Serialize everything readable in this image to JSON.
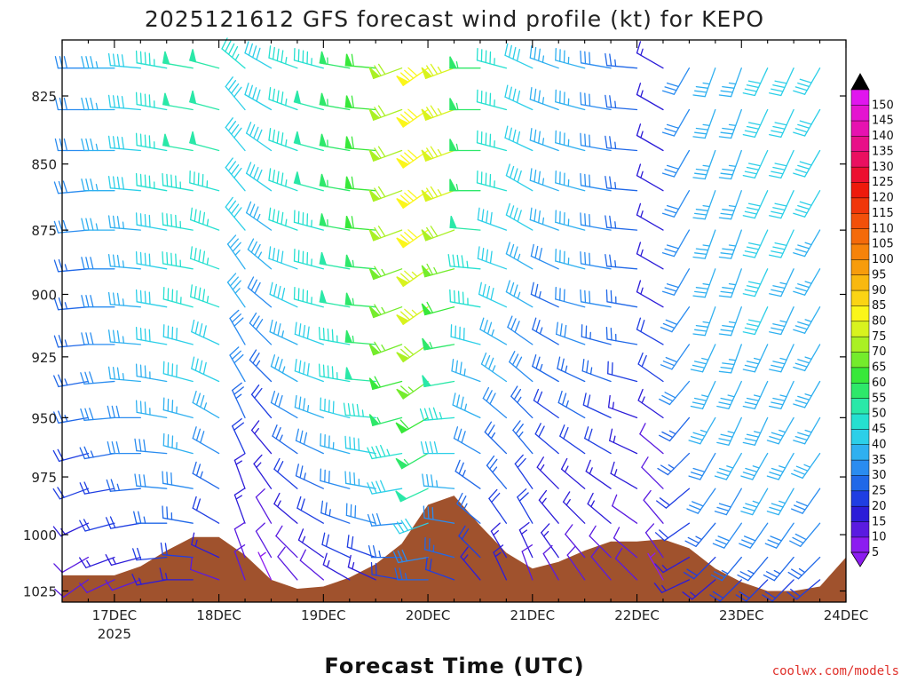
{
  "chart_data": {
    "type": "wind_profile",
    "title": "2025121612 GFS forecast wind profile (kt) for KEPO",
    "xlabel": "Forecast Time (UTC)",
    "credit": "coolwx.com/models",
    "x_ticks": [
      {
        "label": "17DEC",
        "sub": "2025",
        "hour": 12
      },
      {
        "label": "18DEC",
        "sub": "",
        "hour": 36
      },
      {
        "label": "19DEC",
        "sub": "",
        "hour": 60
      },
      {
        "label": "20DEC",
        "sub": "",
        "hour": 84
      },
      {
        "label": "21DEC",
        "sub": "",
        "hour": 108
      },
      {
        "label": "22DEC",
        "sub": "",
        "hour": 132
      },
      {
        "label": "23DEC",
        "sub": "",
        "hour": 156
      },
      {
        "label": "24DEC",
        "sub": "",
        "hour": 180
      }
    ],
    "x_range_hours": [
      0,
      180
    ],
    "y_label_ticks": [
      825,
      850,
      875,
      900,
      925,
      950,
      975,
      1000,
      1025
    ],
    "y_range_mb": [
      805,
      1030
    ],
    "pressure_levels": [
      815,
      830,
      845,
      860,
      875,
      890,
      905,
      920,
      935,
      950,
      965,
      980,
      995,
      1010,
      1020
    ],
    "barb_hours": [
      6,
      12,
      18,
      24,
      30,
      36,
      42,
      48,
      54,
      60,
      66,
      72,
      78,
      84,
      90,
      96,
      102,
      108,
      114,
      120,
      126,
      132,
      138,
      144,
      150,
      156,
      162,
      168,
      174
    ],
    "colorbar": {
      "values": [
        5,
        10,
        15,
        20,
        25,
        30,
        35,
        40,
        45,
        50,
        55,
        60,
        65,
        70,
        75,
        80,
        85,
        90,
        95,
        100,
        105,
        110,
        115,
        120,
        125,
        130,
        135,
        140,
        145,
        150
      ],
      "colors": [
        "#8c1cf0",
        "#5a1be0",
        "#2c1cd8",
        "#1f3ee2",
        "#2068e8",
        "#2a8cf0",
        "#2fb0f0",
        "#2ccfe8",
        "#25e0d0",
        "#2ae8a8",
        "#2ee86a",
        "#38e83a",
        "#74ec2c",
        "#aaf024",
        "#d8f31e",
        "#fbf61a",
        "#fbd414",
        "#f9b80f",
        "#f79c0c",
        "#f6830a",
        "#f46a0a",
        "#f2500a",
        "#f0360a",
        "#ee1a0c",
        "#ec1030",
        "#ea1060",
        "#e81088",
        "#e612b0",
        "#e414d0",
        "#e016ee"
      ],
      "under_color": "#8c1cf0",
      "over_color": "#000000"
    },
    "terrain": {
      "color": "#a0522d",
      "hours": [
        0,
        6,
        12,
        18,
        24,
        30,
        36,
        42,
        48,
        54,
        60,
        66,
        72,
        78,
        84,
        90,
        96,
        102,
        108,
        114,
        120,
        126,
        132,
        138,
        144,
        150,
        156,
        162,
        168,
        174,
        180
      ],
      "pressure_mb": [
        1018,
        1018,
        1018,
        1014,
        1007,
        1001,
        1001,
        1009,
        1020,
        1024,
        1023,
        1019,
        1013,
        1004,
        987,
        983,
        996,
        1008,
        1015,
        1012,
        1007,
        1003,
        1003,
        1002,
        1006,
        1015,
        1021,
        1025,
        1025,
        1023,
        1010
      ]
    },
    "wind_field": {
      "speed_kt": [
        [
          30,
          35,
          40,
          45,
          50,
          50,
          45,
          40,
          45,
          45,
          55,
          60,
          70,
          80,
          75,
          55,
          45,
          40,
          35,
          35,
          30,
          25,
          15,
          30,
          35,
          35,
          40,
          40,
          40
        ],
        [
          30,
          35,
          40,
          45,
          50,
          50,
          40,
          40,
          45,
          50,
          55,
          60,
          70,
          80,
          75,
          55,
          45,
          40,
          35,
          35,
          30,
          25,
          15,
          30,
          35,
          35,
          40,
          40,
          40
        ],
        [
          30,
          35,
          40,
          45,
          50,
          50,
          40,
          40,
          45,
          50,
          55,
          60,
          70,
          80,
          75,
          55,
          45,
          40,
          35,
          35,
          30,
          25,
          15,
          30,
          35,
          35,
          40,
          40,
          40
        ],
        [
          30,
          35,
          40,
          45,
          45,
          45,
          40,
          40,
          45,
          50,
          55,
          60,
          70,
          80,
          75,
          55,
          45,
          40,
          35,
          35,
          30,
          25,
          15,
          30,
          35,
          35,
          40,
          40,
          40
        ],
        [
          30,
          35,
          35,
          40,
          45,
          45,
          40,
          35,
          45,
          45,
          55,
          60,
          70,
          80,
          70,
          50,
          40,
          40,
          35,
          35,
          30,
          25,
          15,
          30,
          35,
          35,
          40,
          40,
          35
        ],
        [
          25,
          30,
          35,
          40,
          45,
          45,
          35,
          35,
          40,
          45,
          50,
          55,
          65,
          75,
          65,
          45,
          40,
          35,
          30,
          35,
          30,
          25,
          15,
          30,
          35,
          35,
          40,
          35,
          35
        ],
        [
          25,
          30,
          35,
          40,
          45,
          45,
          35,
          30,
          40,
          45,
          50,
          55,
          65,
          75,
          60,
          45,
          40,
          35,
          25,
          30,
          30,
          25,
          15,
          30,
          35,
          35,
          40,
          35,
          35
        ],
        [
          25,
          30,
          35,
          40,
          40,
          40,
          30,
          30,
          35,
          40,
          45,
          55,
          65,
          70,
          55,
          40,
          35,
          30,
          25,
          30,
          25,
          25,
          20,
          30,
          35,
          35,
          35,
          35,
          35
        ],
        [
          25,
          30,
          35,
          35,
          40,
          40,
          30,
          25,
          35,
          40,
          45,
          50,
          60,
          65,
          50,
          35,
          35,
          30,
          25,
          25,
          25,
          20,
          20,
          30,
          35,
          35,
          35,
          35,
          35
        ],
        [
          25,
          30,
          30,
          35,
          35,
          35,
          25,
          20,
          30,
          35,
          40,
          45,
          55,
          60,
          45,
          35,
          30,
          25,
          20,
          25,
          20,
          15,
          15,
          25,
          35,
          35,
          35,
          35,
          35
        ],
        [
          20,
          25,
          30,
          30,
          35,
          30,
          20,
          15,
          25,
          30,
          35,
          40,
          45,
          55,
          40,
          30,
          25,
          25,
          20,
          20,
          20,
          15,
          10,
          25,
          30,
          35,
          35,
          35,
          35
        ],
        [
          20,
          20,
          25,
          30,
          30,
          25,
          15,
          15,
          20,
          25,
          30,
          35,
          40,
          50,
          35,
          25,
          25,
          20,
          15,
          15,
          15,
          15,
          10,
          20,
          30,
          30,
          35,
          35,
          30
        ],
        [
          15,
          20,
          20,
          25,
          25,
          20,
          15,
          10,
          15,
          20,
          25,
          30,
          30,
          40,
          30,
          25,
          20,
          20,
          15,
          15,
          15,
          10,
          10,
          20,
          25,
          30,
          30,
          30,
          30
        ],
        [
          10,
          15,
          15,
          20,
          20,
          15,
          10,
          10,
          10,
          15,
          20,
          20,
          25,
          30,
          25,
          20,
          15,
          15,
          15,
          10,
          10,
          10,
          10,
          15,
          20,
          25,
          25,
          25,
          25
        ],
        [
          10,
          10,
          10,
          15,
          15,
          10,
          10,
          5,
          10,
          10,
          15,
          15,
          20,
          25,
          20,
          15,
          15,
          10,
          10,
          10,
          10,
          10,
          5,
          15,
          15,
          20,
          20,
          20,
          20
        ]
      ],
      "direction_deg": [
        [
          270,
          270,
          275,
          280,
          280,
          285,
          310,
          300,
          290,
          285,
          280,
          275,
          250,
          235,
          250,
          270,
          285,
          295,
          290,
          285,
          280,
          275,
          300,
          210,
          200,
          200,
          205,
          205,
          210
        ],
        [
          270,
          270,
          275,
          280,
          280,
          285,
          320,
          300,
          290,
          285,
          280,
          275,
          250,
          235,
          250,
          270,
          285,
          295,
          290,
          285,
          280,
          275,
          300,
          210,
          200,
          200,
          205,
          205,
          210
        ],
        [
          270,
          270,
          275,
          280,
          280,
          285,
          320,
          305,
          290,
          285,
          280,
          275,
          250,
          235,
          250,
          270,
          285,
          295,
          290,
          285,
          280,
          275,
          300,
          210,
          200,
          200,
          205,
          205,
          210
        ],
        [
          265,
          270,
          275,
          280,
          280,
          285,
          320,
          305,
          290,
          285,
          280,
          275,
          250,
          235,
          250,
          270,
          285,
          300,
          290,
          285,
          280,
          275,
          300,
          210,
          200,
          200,
          205,
          205,
          210
        ],
        [
          265,
          270,
          275,
          280,
          280,
          290,
          320,
          305,
          290,
          285,
          280,
          275,
          250,
          235,
          250,
          275,
          290,
          300,
          290,
          285,
          280,
          275,
          300,
          210,
          200,
          200,
          205,
          205,
          210
        ],
        [
          265,
          270,
          275,
          280,
          280,
          290,
          325,
          310,
          290,
          285,
          280,
          275,
          250,
          235,
          255,
          275,
          290,
          300,
          295,
          285,
          280,
          275,
          300,
          210,
          200,
          200,
          205,
          205,
          210
        ],
        [
          265,
          270,
          275,
          280,
          285,
          290,
          325,
          310,
          295,
          285,
          280,
          275,
          250,
          235,
          255,
          280,
          295,
          300,
          295,
          285,
          280,
          280,
          300,
          215,
          200,
          200,
          205,
          205,
          210
        ],
        [
          265,
          270,
          275,
          280,
          285,
          295,
          330,
          315,
          295,
          290,
          280,
          275,
          250,
          235,
          260,
          285,
          300,
          305,
          300,
          290,
          285,
          280,
          300,
          215,
          205,
          200,
          205,
          205,
          210
        ],
        [
          260,
          265,
          275,
          280,
          285,
          295,
          330,
          315,
          300,
          290,
          280,
          275,
          255,
          235,
          260,
          290,
          305,
          310,
          300,
          295,
          290,
          285,
          305,
          220,
          205,
          205,
          205,
          205,
          210
        ],
        [
          260,
          265,
          270,
          280,
          285,
          300,
          335,
          320,
          300,
          290,
          285,
          275,
          255,
          240,
          265,
          295,
          310,
          315,
          305,
          300,
          295,
          290,
          305,
          220,
          210,
          205,
          205,
          210,
          210
        ],
        [
          255,
          260,
          270,
          275,
          285,
          300,
          335,
          320,
          305,
          295,
          285,
          280,
          260,
          240,
          270,
          300,
          315,
          320,
          310,
          305,
          300,
          295,
          310,
          225,
          210,
          210,
          210,
          210,
          215
        ],
        [
          250,
          260,
          265,
          275,
          280,
          300,
          340,
          325,
          310,
          295,
          285,
          280,
          260,
          245,
          275,
          305,
          320,
          325,
          315,
          310,
          305,
          300,
          315,
          230,
          215,
          210,
          210,
          210,
          215
        ],
        [
          245,
          255,
          260,
          270,
          280,
          300,
          340,
          330,
          310,
          300,
          290,
          285,
          265,
          250,
          280,
          310,
          325,
          330,
          320,
          315,
          310,
          305,
          320,
          235,
          220,
          215,
          215,
          215,
          220
        ],
        [
          240,
          250,
          255,
          265,
          275,
          295,
          340,
          330,
          315,
          305,
          295,
          290,
          270,
          260,
          285,
          315,
          330,
          335,
          325,
          320,
          315,
          310,
          325,
          240,
          225,
          220,
          220,
          220,
          225
        ],
        [
          235,
          245,
          250,
          260,
          270,
          290,
          340,
          335,
          320,
          310,
          300,
          295,
          280,
          270,
          290,
          320,
          335,
          340,
          330,
          325,
          320,
          315,
          330,
          245,
          230,
          225,
          225,
          225,
          230
        ]
      ]
    }
  }
}
